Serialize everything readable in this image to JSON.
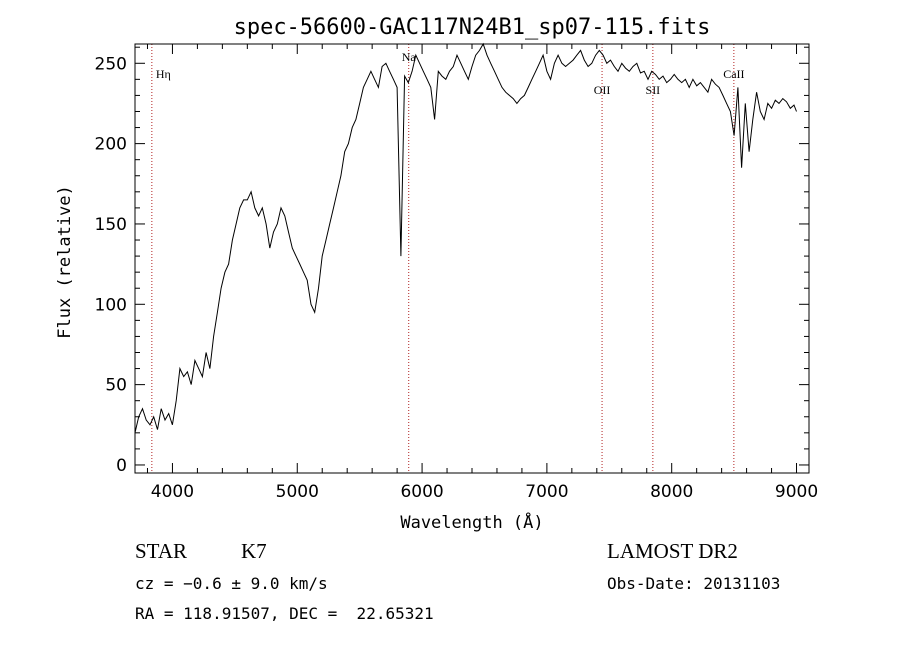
{
  "chart_data": {
    "type": "line",
    "title": "spec-56600-GAC117N24B1_sp07-115.fits",
    "xlabel": "Wavelength (Å)",
    "ylabel": "Flux (relative)",
    "xlim": [
      3700,
      9100
    ],
    "ylim": [
      -5,
      262
    ],
    "xticks": [
      4000,
      5000,
      6000,
      7000,
      8000,
      9000
    ],
    "yticks": [
      0,
      50,
      100,
      150,
      200,
      250
    ],
    "grid": false,
    "series": [
      {
        "x": [
          3700,
          3730,
          3760,
          3790,
          3820,
          3850,
          3880,
          3910,
          3940,
          3970,
          4000,
          4030,
          4060,
          4090,
          4120,
          4150,
          4180,
          4210,
          4240,
          4270,
          4300,
          4330,
          4360,
          4390,
          4420,
          4450,
          4480,
          4510,
          4540,
          4570,
          4600,
          4630,
          4660,
          4690,
          4720,
          4750,
          4780,
          4810,
          4840,
          4870,
          4900,
          4930,
          4960,
          4990,
          5020,
          5050,
          5080,
          5110,
          5140,
          5170,
          5200,
          5230,
          5260,
          5290,
          5320,
          5350,
          5380,
          5410,
          5440,
          5470,
          5500,
          5530,
          5560,
          5590,
          5620,
          5650,
          5680,
          5710,
          5740,
          5770,
          5800,
          5830,
          5860,
          5890,
          5920,
          5950,
          5980,
          6010,
          6040,
          6070,
          6100,
          6130,
          6160,
          6190,
          6220,
          6250,
          6280,
          6310,
          6340,
          6370,
          6400,
          6430,
          6460,
          6490,
          6520,
          6550,
          6580,
          6610,
          6640,
          6670,
          6700,
          6730,
          6760,
          6790,
          6820,
          6850,
          6880,
          6910,
          6940,
          6970,
          7000,
          7030,
          7060,
          7090,
          7120,
          7150,
          7180,
          7210,
          7240,
          7270,
          7300,
          7330,
          7360,
          7390,
          7420,
          7450,
          7480,
          7510,
          7540,
          7570,
          7600,
          7630,
          7660,
          7690,
          7720,
          7750,
          7780,
          7810,
          7840,
          7870,
          7900,
          7930,
          7960,
          7990,
          8020,
          8050,
          8080,
          8110,
          8140,
          8170,
          8200,
          8230,
          8260,
          8290,
          8320,
          8350,
          8380,
          8410,
          8440,
          8470,
          8500,
          8530,
          8560,
          8590,
          8620,
          8650,
          8680,
          8710,
          8740,
          8770,
          8800,
          8830,
          8860,
          8890,
          8920,
          8950,
          8980,
          9000
        ],
        "y": [
          20,
          30,
          35,
          28,
          25,
          30,
          22,
          35,
          28,
          32,
          25,
          40,
          60,
          55,
          58,
          50,
          65,
          60,
          55,
          70,
          60,
          80,
          95,
          110,
          120,
          125,
          140,
          150,
          160,
          165,
          165,
          170,
          160,
          155,
          160,
          150,
          135,
          145,
          150,
          160,
          155,
          145,
          135,
          130,
          125,
          120,
          115,
          100,
          95,
          110,
          130,
          140,
          150,
          160,
          170,
          180,
          195,
          200,
          210,
          215,
          225,
          235,
          240,
          245,
          240,
          235,
          248,
          250,
          245,
          240,
          235,
          130,
          242,
          238,
          245,
          255,
          250,
          245,
          240,
          235,
          215,
          245,
          242,
          240,
          245,
          248,
          255,
          250,
          245,
          240,
          248,
          255,
          258,
          262,
          255,
          250,
          245,
          240,
          235,
          232,
          230,
          228,
          225,
          228,
          230,
          235,
          240,
          245,
          250,
          255,
          245,
          240,
          250,
          255,
          250,
          248,
          250,
          252,
          255,
          258,
          252,
          248,
          250,
          255,
          258,
          255,
          250,
          252,
          248,
          245,
          250,
          247,
          245,
          248,
          250,
          244,
          245,
          240,
          245,
          243,
          240,
          242,
          238,
          240,
          243,
          240,
          238,
          240,
          235,
          240,
          236,
          238,
          235,
          232,
          240,
          237,
          235,
          230,
          225,
          220,
          205,
          235,
          185,
          225,
          195,
          215,
          232,
          220,
          215,
          225,
          222,
          227,
          225,
          228,
          226,
          222,
          224,
          220
        ]
      }
    ],
    "vlines": [
      {
        "x": 3835,
        "label": "Hη"
      },
      {
        "x": 5893,
        "label": "Na"
      },
      {
        "x": 7442,
        "label": "OII"
      },
      {
        "x": 7849,
        "label": "SII"
      },
      {
        "x": 8498,
        "label": "CaII"
      }
    ]
  },
  "info": {
    "class": "STAR",
    "subclass": "K7",
    "survey": "LAMOST DR2",
    "cz": "cz = −0.6 ± 9.0 km/s",
    "obs_date": "Obs-Date: 20131103",
    "radec": "RA = 118.91507, DEC =  22.65321"
  },
  "colors": {
    "vline": "#b22222",
    "axis": "#000000",
    "trace": "#000000"
  }
}
